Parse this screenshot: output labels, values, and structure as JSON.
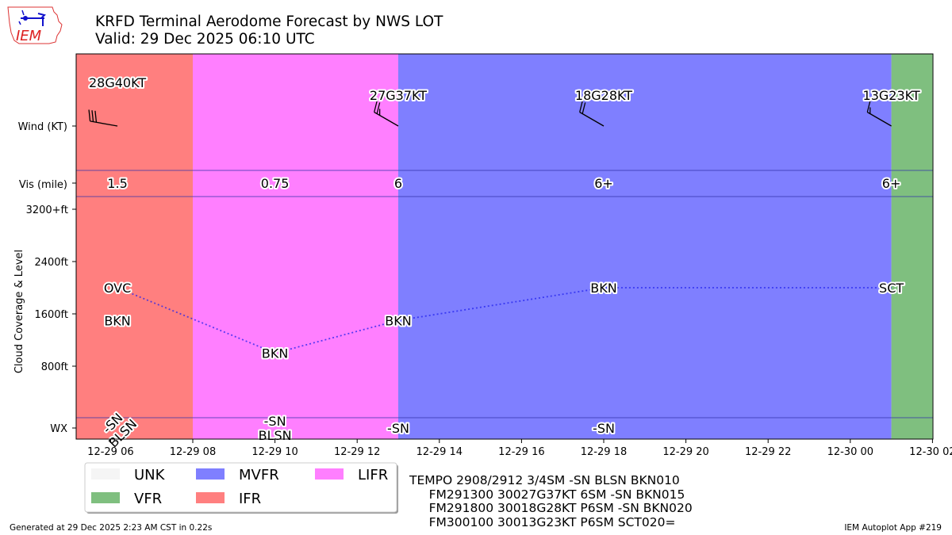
{
  "header": {
    "title_line1": "KRFD Terminal Aerodome Forecast by NWS LOT",
    "title_line2": "Valid: 29 Dec 2025 06:10 UTC",
    "logo_text": "IEM"
  },
  "footer": {
    "generated": "Generated at 29 Dec 2025 2:23 AM CST in 0.22s",
    "app": "IEM Autoplot App #219"
  },
  "taf_text": [
    "TEMPO 2908/2912 3/4SM -SN BLSN BKN010",
    "     FM291300 30027G37KT 6SM -SN BKN015",
    "     FM291800 30018G28KT P6SM -SN BKN020",
    "     FM300100 30013G23KT P6SM SCT020="
  ],
  "chart_data": {
    "type": "timeline",
    "xlim": [
      "12-29 05:10",
      "12-30 02:00"
    ],
    "x_ticks": [
      "12-29 06",
      "12-29 08",
      "12-29 10",
      "12-29 12",
      "12-29 14",
      "12-29 16",
      "12-29 18",
      "12-29 20",
      "12-29 22",
      "12-30 00",
      "12-30 02"
    ],
    "x_tick_hours": [
      6,
      8,
      10,
      12,
      14,
      16,
      18,
      20,
      22,
      24,
      26
    ],
    "y_labels": {
      "wind": "Wind (KT)",
      "vis": "Vis (mile)",
      "wx": "WX",
      "cloud_axis": "Cloud Coverage & Level",
      "cloud_ticks": [
        "3200+ft",
        "2400ft",
        "1600ft",
        "800ft"
      ],
      "cloud_tick_values": [
        3200,
        2400,
        1600,
        800
      ]
    },
    "categories_colors": {
      "UNK": "#f5f5f5",
      "VFR": "#7fbf7f",
      "MVFR": "#7f7fff",
      "IFR": "#ff7f7f",
      "LIFR": "#ff7fff"
    },
    "flight_category_periods": [
      {
        "start": "12-29 05:10",
        "end": "12-29 08:00",
        "category": "IFR"
      },
      {
        "start": "12-29 08:00",
        "end": "12-29 13:00",
        "category": "LIFR"
      },
      {
        "start": "12-29 13:00",
        "end": "12-30 01:00",
        "category": "MVFR"
      },
      {
        "start": "12-30 01:00",
        "end": "12-30 02:00",
        "category": "VFR"
      }
    ],
    "wind": [
      {
        "time": "12-29 06:10",
        "dir": 280,
        "speed": 28,
        "gust": 40,
        "label": "28G40KT"
      },
      {
        "time": "12-29 13:00",
        "dir": 300,
        "speed": 27,
        "gust": 37,
        "label": "27G37KT"
      },
      {
        "time": "12-29 18:00",
        "dir": 300,
        "speed": 18,
        "gust": 28,
        "label": "18G28KT"
      },
      {
        "time": "12-30 01:00",
        "dir": 300,
        "speed": 13,
        "gust": 23,
        "label": "13G23KT"
      }
    ],
    "visibility": [
      {
        "time": "12-29 06:10",
        "label": "1.5"
      },
      {
        "time": "12-29 10:00",
        "label": "0.75"
      },
      {
        "time": "12-29 13:00",
        "label": "6"
      },
      {
        "time": "12-29 18:00",
        "label": "6+"
      },
      {
        "time": "12-30 01:00",
        "label": "6+"
      }
    ],
    "clouds": [
      {
        "time": "12-29 06:10",
        "cover": "OVC",
        "level_ft": 2000,
        "line": true
      },
      {
        "time": "12-29 06:10",
        "cover": "BKN",
        "level_ft": 1500,
        "line": false
      },
      {
        "time": "12-29 10:00",
        "cover": "BKN",
        "level_ft": 1000,
        "line": true
      },
      {
        "time": "12-29 13:00",
        "cover": "BKN",
        "level_ft": 1500,
        "line": true
      },
      {
        "time": "12-29 18:00",
        "cover": "BKN",
        "level_ft": 2000,
        "line": true
      },
      {
        "time": "12-30 01:00",
        "cover": "SCT",
        "level_ft": 2000,
        "line": true
      }
    ],
    "cloud_line_color": "#2222ee",
    "weather": [
      {
        "time": "12-29 06:10",
        "lines": [
          "-SN",
          "BLSN"
        ],
        "rotated": true
      },
      {
        "time": "12-29 10:00",
        "lines": [
          "-SN",
          "BLSN"
        ],
        "rotated": false
      },
      {
        "time": "12-29 13:00",
        "lines": [
          "-SN"
        ],
        "rotated": false
      },
      {
        "time": "12-29 18:00",
        "lines": [
          "-SN"
        ],
        "rotated": false
      }
    ],
    "legend": [
      "UNK",
      "VFR",
      "MVFR",
      "IFR",
      "LIFR"
    ],
    "legend_placement": "bottom-left"
  }
}
